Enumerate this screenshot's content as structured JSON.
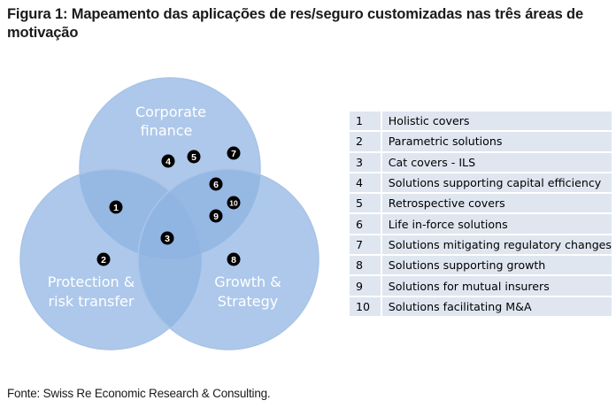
{
  "title": "Figura 1: Mapeamento das aplicações de res/seguro customizadas nas três áreas de motivação",
  "circles": {
    "top": [
      "Corporate",
      "finance"
    ],
    "left": [
      "Protection &",
      "risk transfer"
    ],
    "right": [
      "Growth &",
      "Strategy"
    ]
  },
  "markers": [
    "1",
    "2",
    "3",
    "4",
    "5",
    "6",
    "7",
    "8",
    "9",
    "10"
  ],
  "legend": [
    {
      "num": "1",
      "text": "Holistic covers"
    },
    {
      "num": "2",
      "text": "Parametric solutions"
    },
    {
      "num": "3",
      "text": "Cat covers - ILS"
    },
    {
      "num": "4",
      "text": "Solutions supporting capital efficiency"
    },
    {
      "num": "5",
      "text": "Retrospective covers"
    },
    {
      "num": "6",
      "text": "Life in-force solutions"
    },
    {
      "num": "7",
      "text": "Solutions mitigating regulatory changes"
    },
    {
      "num": "8",
      "text": "Solutions supporting growth"
    },
    {
      "num": "9",
      "text": "Solutions for mutual insurers"
    },
    {
      "num": "10",
      "text": "Solutions facilitating M&A"
    }
  ],
  "source": "Fonte: Swiss Re Economic Research & Consulting.",
  "colors": {
    "circle_fill": "#8db3e2",
    "circle_stroke": "#a9c4e6",
    "marker_fill": "#000000",
    "table_row": "#dfe6f0"
  }
}
